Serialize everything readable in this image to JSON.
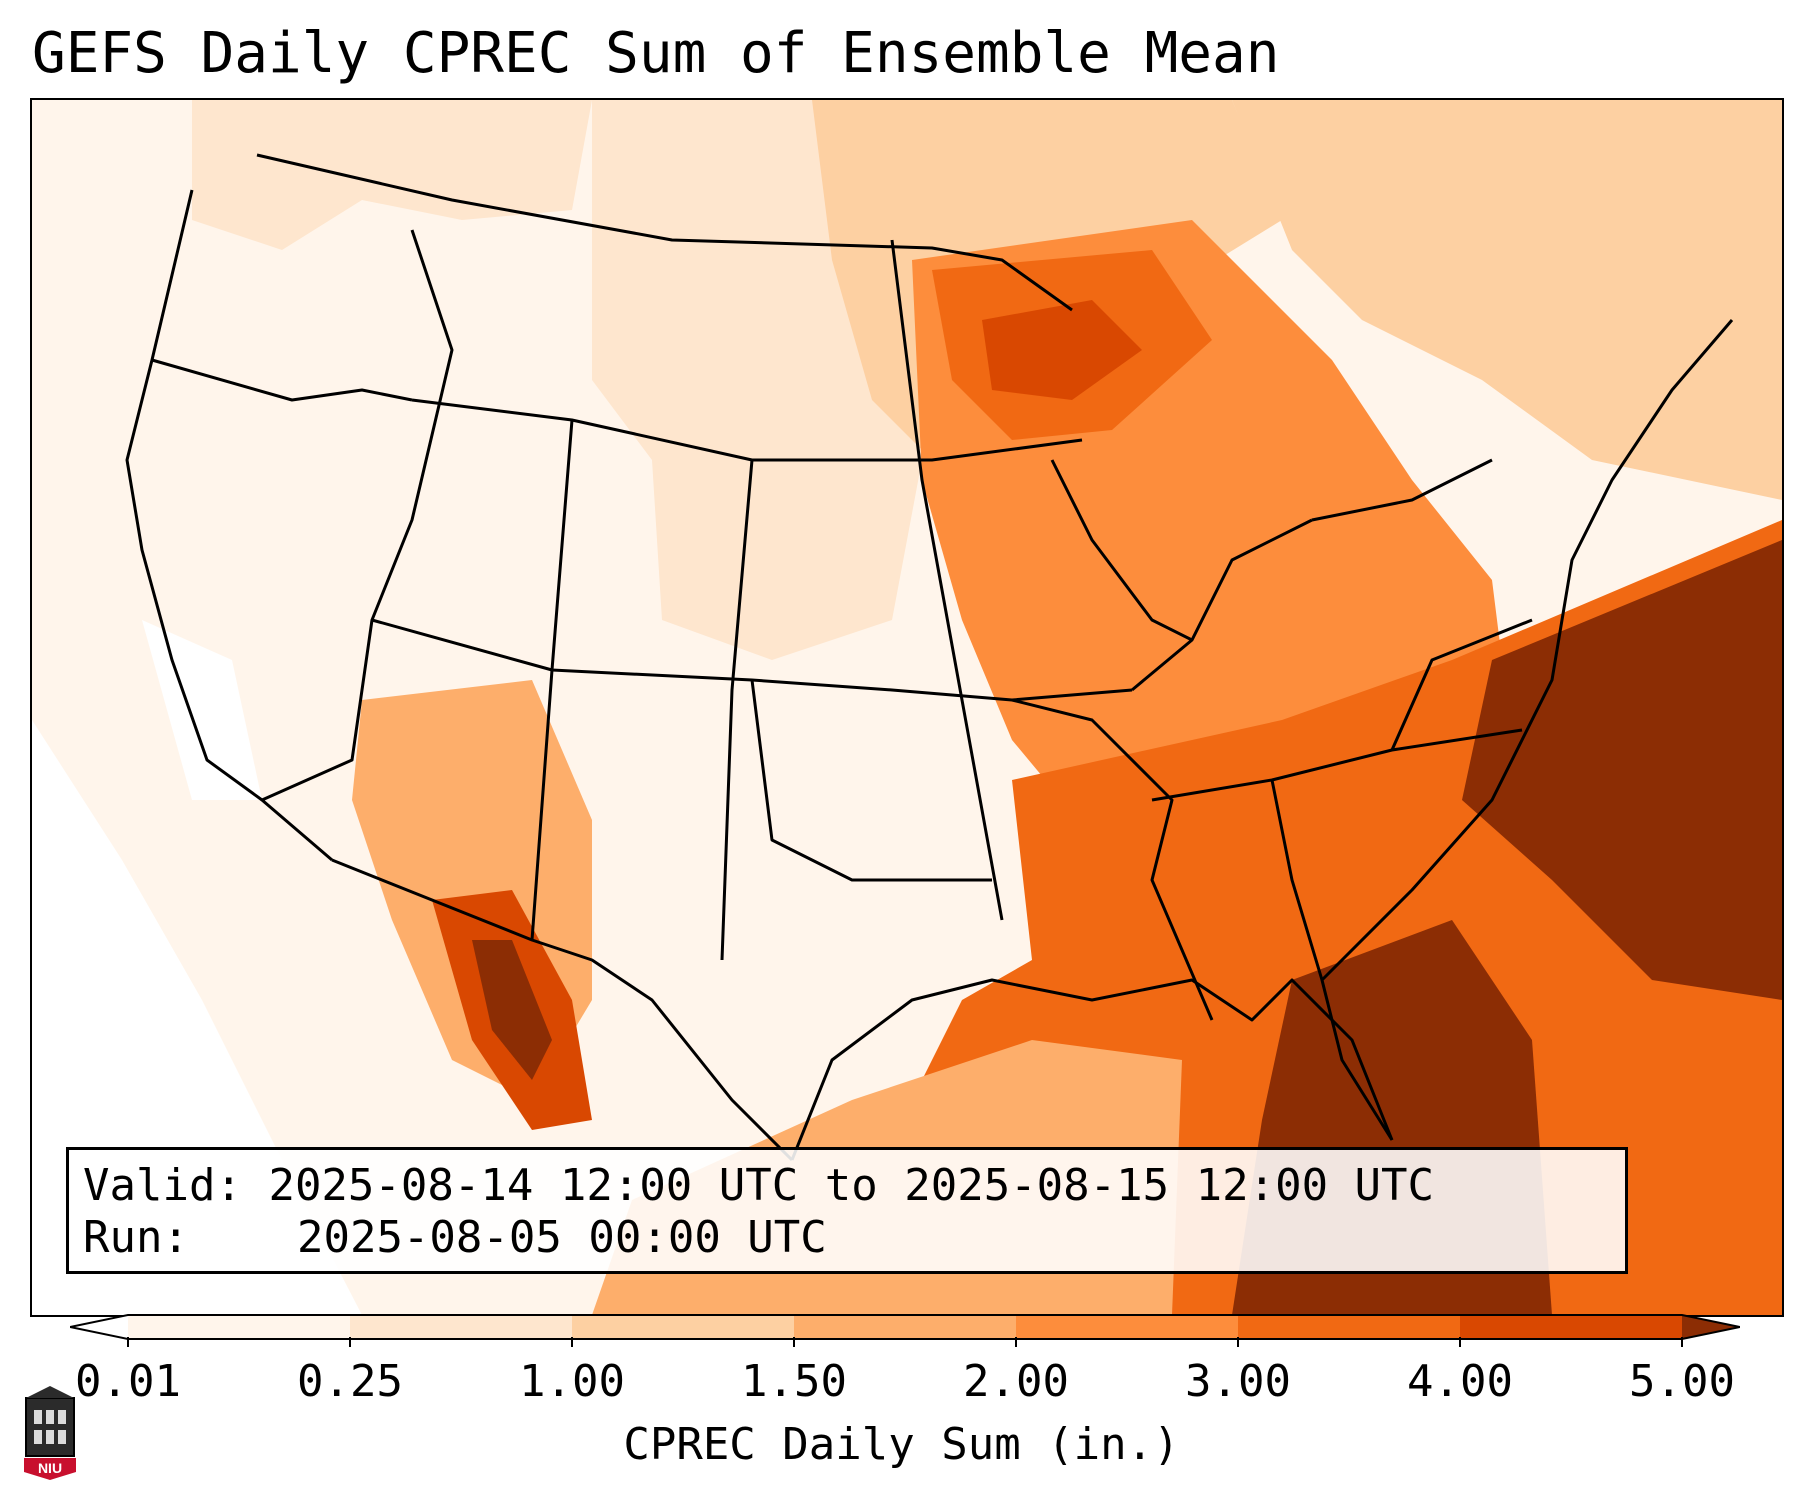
{
  "title": "GEFS Daily CPREC Sum of Ensemble Mean",
  "info": {
    "valid_label": "Valid:",
    "valid_value": "2025-08-14 12:00 UTC to 2025-08-15 12:00 UTC",
    "run_label": "Run:",
    "run_value": "2025-08-05 00:00 UTC"
  },
  "colorbar": {
    "label": "CPREC Daily Sum (in.)",
    "ticks": [
      "0.01",
      "0.25",
      "1.00",
      "1.50",
      "2.00",
      "3.00",
      "4.00",
      "5.00"
    ],
    "colors": [
      "#fff5eb",
      "#fee6ce",
      "#fdd0a2",
      "#fdae6b",
      "#fd8d3c",
      "#f16913",
      "#d94801",
      "#8c2d04"
    ],
    "extend": "both"
  },
  "logo": {
    "text": "NIU",
    "icon": "niu-building-logo-icon"
  },
  "palette": {
    "very_light": "#fff5eb",
    "light": "#fee6ce",
    "light_mid": "#fdd0a2",
    "mid": "#fdae6b",
    "orange": "#fd8d3c",
    "dark_orange": "#f16913",
    "red_orange": "#d94801",
    "brown": "#8c2d04"
  }
}
